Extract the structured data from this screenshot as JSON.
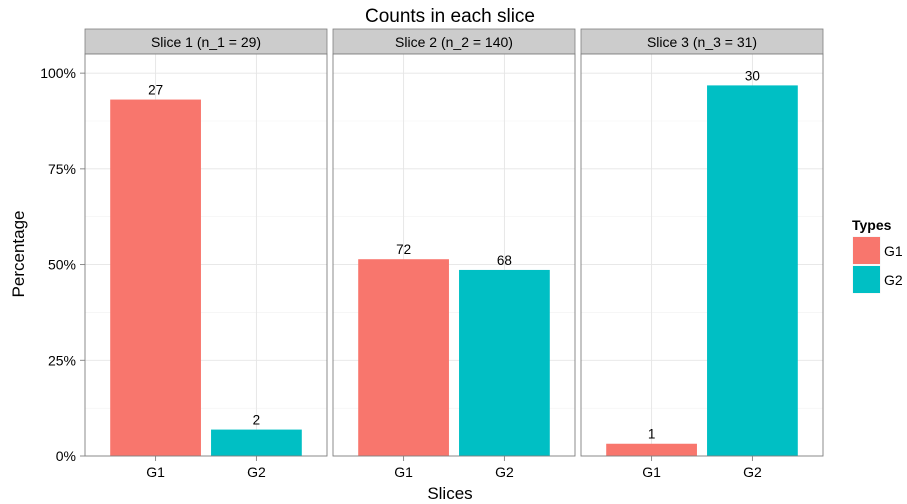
{
  "chart_data": {
    "type": "bar",
    "title": "Counts in each slice",
    "xlabel": "Slices",
    "ylabel": "Percentage",
    "ylim": [
      0,
      1.05
    ],
    "yticks": [
      0,
      0.25,
      0.5,
      0.75,
      1.0
    ],
    "ytick_labels": [
      "0%",
      "25%",
      "50%",
      "75%",
      "100%"
    ],
    "grid": true,
    "legend": {
      "title": "Types",
      "position": "right",
      "entries": [
        {
          "name": "G1",
          "color": "#F8766D"
        },
        {
          "name": "G2",
          "color": "#00BFC4"
        }
      ]
    },
    "facets": [
      {
        "label": "Slice 1 (n_1 = 29)",
        "categories": [
          "G1",
          "G2"
        ],
        "counts": [
          27,
          2
        ],
        "values": [
          0.931,
          0.069
        ],
        "data_labels": [
          "27",
          "2"
        ]
      },
      {
        "label": "Slice 2 (n_2 = 140)",
        "categories": [
          "G1",
          "G2"
        ],
        "counts": [
          72,
          68
        ],
        "values": [
          0.514,
          0.486
        ],
        "data_labels": [
          "72",
          "68"
        ]
      },
      {
        "label": "Slice 3 (n_3 = 31)",
        "categories": [
          "G1",
          "G2"
        ],
        "counts": [
          1,
          30
        ],
        "values": [
          0.032,
          0.968
        ],
        "data_labels": [
          "1",
          "30"
        ]
      }
    ]
  }
}
